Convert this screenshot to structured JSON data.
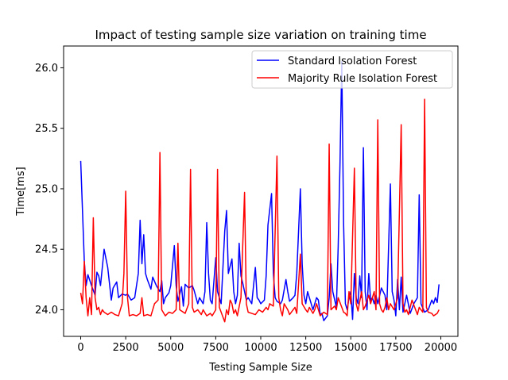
{
  "chart_data": {
    "type": "line",
    "title": "Impact of testing sample size variation on training time",
    "xlabel": "Testing Sample Size",
    "ylabel": "Time[ms]",
    "xlim": [
      -950,
      20950
    ],
    "ylim": [
      23.78,
      26.18
    ],
    "xticks": [
      0,
      2500,
      5000,
      7500,
      10000,
      12500,
      15000,
      17500,
      20000
    ],
    "yticks": [
      24.0,
      24.5,
      25.0,
      25.5,
      26.0
    ],
    "ytick_labels": [
      "24.0",
      "24.5",
      "25.0",
      "25.5",
      "26.0"
    ],
    "legend_position": "top-right",
    "grid": false,
    "series": [
      {
        "name": "Standard Isolation Forest",
        "color": "#0000ff",
        "points": [
          [
            0,
            25.23
          ],
          [
            200,
            24.4
          ],
          [
            300,
            24.2
          ],
          [
            400,
            24.29
          ],
          [
            600,
            24.2
          ],
          [
            800,
            24.12
          ],
          [
            900,
            24.31
          ],
          [
            1000,
            24.28
          ],
          [
            1100,
            24.2
          ],
          [
            1300,
            24.5
          ],
          [
            1500,
            24.35
          ],
          [
            1700,
            24.08
          ],
          [
            1800,
            24.18
          ],
          [
            2000,
            24.23
          ],
          [
            2100,
            24.1
          ],
          [
            2300,
            24.13
          ],
          [
            2500,
            24.12
          ],
          [
            2600,
            24.13
          ],
          [
            2800,
            24.08
          ],
          [
            3000,
            24.1
          ],
          [
            3200,
            24.3
          ],
          [
            3300,
            24.74
          ],
          [
            3400,
            24.38
          ],
          [
            3500,
            24.62
          ],
          [
            3600,
            24.3
          ],
          [
            3700,
            24.25
          ],
          [
            3900,
            24.17
          ],
          [
            4000,
            24.27
          ],
          [
            4200,
            24.2
          ],
          [
            4400,
            24.15
          ],
          [
            4500,
            24.24
          ],
          [
            4600,
            24.05
          ],
          [
            4700,
            24.1
          ],
          [
            4900,
            24.14
          ],
          [
            5000,
            24.2
          ],
          [
            5200,
            24.53
          ],
          [
            5300,
            24.2
          ],
          [
            5400,
            24.07
          ],
          [
            5600,
            24.19
          ],
          [
            5700,
            24.03
          ],
          [
            5800,
            24.21
          ],
          [
            6000,
            24.18
          ],
          [
            6200,
            24.2
          ],
          [
            6300,
            24.16
          ],
          [
            6500,
            24.05
          ],
          [
            6600,
            24.1
          ],
          [
            6800,
            24.05
          ],
          [
            6900,
            24.15
          ],
          [
            7000,
            24.72
          ],
          [
            7100,
            24.3
          ],
          [
            7200,
            24.08
          ],
          [
            7300,
            24.05
          ],
          [
            7500,
            24.43
          ],
          [
            7600,
            24.15
          ],
          [
            7800,
            24.05
          ],
          [
            8000,
            24.65
          ],
          [
            8100,
            24.82
          ],
          [
            8200,
            24.3
          ],
          [
            8400,
            24.42
          ],
          [
            8500,
            24.15
          ],
          [
            8600,
            24.05
          ],
          [
            8700,
            24.12
          ],
          [
            8800,
            24.55
          ],
          [
            8900,
            24.28
          ],
          [
            9000,
            24.22
          ],
          [
            9200,
            24.08
          ],
          [
            9300,
            24.1
          ],
          [
            9500,
            24.05
          ],
          [
            9700,
            24.35
          ],
          [
            9800,
            24.1
          ],
          [
            9900,
            24.08
          ],
          [
            10000,
            24.05
          ],
          [
            10200,
            24.08
          ],
          [
            10300,
            24.28
          ],
          [
            10400,
            24.7
          ],
          [
            10600,
            24.96
          ],
          [
            10700,
            24.3
          ],
          [
            10800,
            24.1
          ],
          [
            10900,
            24.07
          ],
          [
            11100,
            24.05
          ],
          [
            11200,
            24.08
          ],
          [
            11400,
            24.25
          ],
          [
            11500,
            24.15
          ],
          [
            11600,
            24.07
          ],
          [
            11800,
            24.1
          ],
          [
            11900,
            24.12
          ],
          [
            12000,
            24.3
          ],
          [
            12200,
            25.0
          ],
          [
            12300,
            24.38
          ],
          [
            12400,
            24.12
          ],
          [
            12500,
            24.05
          ],
          [
            12600,
            24.15
          ],
          [
            12800,
            24.05
          ],
          [
            12900,
            24.0
          ],
          [
            13100,
            24.1
          ],
          [
            13200,
            24.08
          ],
          [
            13300,
            23.96
          ],
          [
            13400,
            23.97
          ],
          [
            13500,
            23.91
          ],
          [
            13700,
            23.95
          ],
          [
            13800,
            24.1
          ],
          [
            13900,
            24.38
          ],
          [
            14000,
            24.15
          ],
          [
            14200,
            24.02
          ],
          [
            14300,
            24.52
          ],
          [
            14400,
            25.2
          ],
          [
            14500,
            26.05
          ],
          [
            14600,
            24.72
          ],
          [
            14700,
            24.05
          ],
          [
            14800,
            24.0
          ],
          [
            14900,
            24.1
          ],
          [
            15000,
            24.15
          ],
          [
            15100,
            23.92
          ],
          [
            15200,
            24.3
          ],
          [
            15300,
            24.1
          ],
          [
            15400,
            24.05
          ],
          [
            15500,
            24.28
          ],
          [
            15600,
            24.1
          ],
          [
            15700,
            25.34
          ],
          [
            15800,
            24.15
          ],
          [
            15900,
            24.0
          ],
          [
            16000,
            24.3
          ],
          [
            16100,
            24.08
          ],
          [
            16200,
            24.1
          ],
          [
            16300,
            24.05
          ],
          [
            16400,
            24.12
          ],
          [
            16500,
            24.05
          ],
          [
            16700,
            24.18
          ],
          [
            16900,
            24.12
          ],
          [
            17000,
            24.0
          ],
          [
            17200,
            25.04
          ],
          [
            17300,
            24.15
          ],
          [
            17400,
            24.08
          ],
          [
            17500,
            23.95
          ],
          [
            17600,
            24.25
          ],
          [
            17700,
            24.0
          ],
          [
            17800,
            24.27
          ],
          [
            17900,
            23.98
          ],
          [
            18100,
            24.12
          ],
          [
            18300,
            23.97
          ],
          [
            18500,
            24.05
          ],
          [
            18700,
            24.1
          ],
          [
            18800,
            24.95
          ],
          [
            18900,
            24.05
          ],
          [
            19100,
            23.98
          ],
          [
            19300,
            24.0
          ],
          [
            19500,
            24.08
          ],
          [
            19600,
            24.05
          ],
          [
            19700,
            24.1
          ],
          [
            19800,
            24.06
          ],
          [
            19900,
            24.21
          ]
        ]
      },
      {
        "name": "Majority Rule Isolation Forest",
        "color": "#ff0000",
        "points": [
          [
            0,
            24.14
          ],
          [
            100,
            24.05
          ],
          [
            200,
            24.4
          ],
          [
            300,
            24.1
          ],
          [
            400,
            23.95
          ],
          [
            500,
            24.1
          ],
          [
            600,
            23.96
          ],
          [
            700,
            24.76
          ],
          [
            800,
            24.1
          ],
          [
            900,
            24.0
          ],
          [
            1000,
            24.02
          ],
          [
            1100,
            23.96
          ],
          [
            1200,
            24.0
          ],
          [
            1300,
            23.98
          ],
          [
            1500,
            23.96
          ],
          [
            1700,
            23.98
          ],
          [
            1900,
            23.96
          ],
          [
            2100,
            23.95
          ],
          [
            2300,
            24.05
          ],
          [
            2400,
            24.3
          ],
          [
            2500,
            24.98
          ],
          [
            2600,
            24.1
          ],
          [
            2700,
            23.95
          ],
          [
            2900,
            23.96
          ],
          [
            3100,
            23.95
          ],
          [
            3300,
            23.97
          ],
          [
            3400,
            24.1
          ],
          [
            3500,
            23.95
          ],
          [
            3700,
            23.96
          ],
          [
            3900,
            23.95
          ],
          [
            4100,
            24.05
          ],
          [
            4300,
            24.08
          ],
          [
            4400,
            25.3
          ],
          [
            4500,
            24.0
          ],
          [
            4700,
            23.95
          ],
          [
            4900,
            23.98
          ],
          [
            5100,
            23.97
          ],
          [
            5300,
            24.0
          ],
          [
            5400,
            24.55
          ],
          [
            5500,
            24.0
          ],
          [
            5700,
            23.98
          ],
          [
            5800,
            23.97
          ],
          [
            6000,
            24.05
          ],
          [
            6100,
            25.16
          ],
          [
            6200,
            24.02
          ],
          [
            6300,
            23.98
          ],
          [
            6500,
            24.0
          ],
          [
            6700,
            23.96
          ],
          [
            6800,
            24.0
          ],
          [
            7000,
            23.95
          ],
          [
            7200,
            23.97
          ],
          [
            7300,
            23.95
          ],
          [
            7500,
            24.0
          ],
          [
            7600,
            25.16
          ],
          [
            7700,
            24.02
          ],
          [
            7800,
            23.98
          ],
          [
            8000,
            23.9
          ],
          [
            8100,
            24.0
          ],
          [
            8200,
            23.96
          ],
          [
            8300,
            24.08
          ],
          [
            8400,
            24.05
          ],
          [
            8500,
            23.97
          ],
          [
            8600,
            24.0
          ],
          [
            8700,
            23.95
          ],
          [
            8900,
            24.1
          ],
          [
            9100,
            24.97
          ],
          [
            9200,
            24.05
          ],
          [
            9300,
            23.98
          ],
          [
            9500,
            23.97
          ],
          [
            9700,
            23.96
          ],
          [
            9900,
            24.0
          ],
          [
            10100,
            23.98
          ],
          [
            10300,
            24.02
          ],
          [
            10400,
            24.0
          ],
          [
            10500,
            24.05
          ],
          [
            10700,
            24.03
          ],
          [
            10900,
            25.27
          ],
          [
            11000,
            24.1
          ],
          [
            11100,
            24.0
          ],
          [
            11200,
            23.95
          ],
          [
            11300,
            24.05
          ],
          [
            11500,
            24.0
          ],
          [
            11600,
            23.96
          ],
          [
            11800,
            24.0
          ],
          [
            11900,
            24.02
          ],
          [
            12000,
            23.97
          ],
          [
            12200,
            24.46
          ],
          [
            12300,
            24.05
          ],
          [
            12500,
            24.0
          ],
          [
            12600,
            23.98
          ],
          [
            12700,
            24.02
          ],
          [
            12900,
            23.97
          ],
          [
            13000,
            24.0
          ],
          [
            13100,
            24.05
          ],
          [
            13300,
            23.95
          ],
          [
            13500,
            23.98
          ],
          [
            13700,
            23.96
          ],
          [
            13800,
            25.37
          ],
          [
            13900,
            24.0
          ],
          [
            14100,
            24.03
          ],
          [
            14200,
            24.0
          ],
          [
            14300,
            24.1
          ],
          [
            14500,
            24.02
          ],
          [
            14600,
            23.98
          ],
          [
            14700,
            23.97
          ],
          [
            14800,
            23.95
          ],
          [
            14900,
            24.15
          ],
          [
            15000,
            24.05
          ],
          [
            15200,
            25.17
          ],
          [
            15300,
            24.05
          ],
          [
            15400,
            23.99
          ],
          [
            15600,
            24.15
          ],
          [
            15700,
            24.0
          ],
          [
            15800,
            24.03
          ],
          [
            16000,
            24.12
          ],
          [
            16100,
            24.05
          ],
          [
            16300,
            24.15
          ],
          [
            16400,
            24.0
          ],
          [
            16500,
            25.57
          ],
          [
            16600,
            24.05
          ],
          [
            16700,
            24.0
          ],
          [
            16800,
            23.98
          ],
          [
            16900,
            24.02
          ],
          [
            17000,
            24.1
          ],
          [
            17100,
            24.0
          ],
          [
            17200,
            24.05
          ],
          [
            17400,
            24.0
          ],
          [
            17600,
            24.1
          ],
          [
            17800,
            25.53
          ],
          [
            17900,
            24.05
          ],
          [
            18000,
            23.98
          ],
          [
            18100,
            24.0
          ],
          [
            18200,
            23.96
          ],
          [
            18400,
            24.08
          ],
          [
            18600,
            24.0
          ],
          [
            18700,
            23.96
          ],
          [
            18800,
            24.02
          ],
          [
            19000,
            23.98
          ],
          [
            19100,
            25.74
          ],
          [
            19200,
            24.02
          ],
          [
            19300,
            23.98
          ],
          [
            19500,
            23.97
          ],
          [
            19600,
            23.95
          ],
          [
            19800,
            23.97
          ],
          [
            19900,
            24.0
          ]
        ]
      }
    ]
  }
}
